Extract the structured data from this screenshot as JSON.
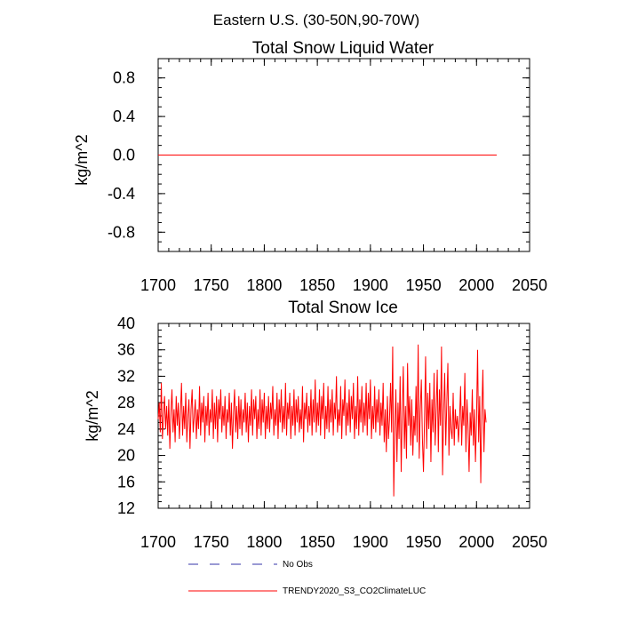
{
  "figure_title": "Eastern U.S. (30-50N,90-70W)",
  "colors": {
    "model": "#ff0000",
    "obs": "#3333aa"
  },
  "legend": [
    {
      "label": "No Obs",
      "style": "dashed",
      "color": "#3333aa"
    },
    {
      "label": "TRENDY2020_S3_CO2ClimateLUC",
      "style": "solid",
      "color": "#ff0000"
    }
  ],
  "chart_data": [
    {
      "type": "line",
      "title": "Total Snow Liquid Water",
      "xlabel": "",
      "ylabel": "kg/m^2",
      "xlim": [
        1700,
        2050
      ],
      "ylim": [
        -1.0,
        1.0
      ],
      "xticks": [
        1700,
        1750,
        1800,
        1850,
        1900,
        1950,
        2000,
        2050
      ],
      "xtick_labels": [
        "1700",
        "1750",
        "1800",
        "1850",
        "1900",
        "1950",
        "2000",
        "2050"
      ],
      "yticks": [
        -0.8,
        -0.4,
        0.0,
        0.4,
        0.8
      ],
      "ytick_labels": [
        "-0.8",
        "-0.4",
        "0.0",
        "0.4",
        "0.8"
      ],
      "series": [
        {
          "name": "TRENDY2020_S3_CO2ClimateLUC",
          "x_start": 1700,
          "values": [
            0.0,
            0.0
          ],
          "x": [
            1700,
            2019
          ]
        }
      ]
    },
    {
      "type": "line",
      "title": "Total Snow Ice",
      "xlabel": "",
      "ylabel": "kg/m^2",
      "xlim": [
        1700,
        2050
      ],
      "ylim": [
        12,
        40
      ],
      "xticks": [
        1700,
        1750,
        1800,
        1850,
        1900,
        1950,
        2000,
        2050
      ],
      "xtick_labels": [
        "1700",
        "1750",
        "1800",
        "1850",
        "1900",
        "1950",
        "2000",
        "2050"
      ],
      "yticks": [
        12,
        16,
        20,
        24,
        28,
        32,
        36,
        40
      ],
      "ytick_labels": [
        "12",
        "16",
        "20",
        "24",
        "28",
        "32",
        "36",
        "40"
      ],
      "series": [
        {
          "name": "TRENDY2020_S3_CO2ClimateLUC",
          "x_start": 1700,
          "values": [
            25.5,
            28.0,
            23.5,
            31.0,
            22.5,
            26.0,
            29.0,
            24.0,
            27.5,
            23.0,
            28.5,
            21.0,
            26.5,
            30.0,
            23.5,
            27.0,
            22.0,
            29.0,
            24.5,
            28.0,
            22.5,
            26.5,
            31.0,
            23.0,
            27.5,
            24.0,
            29.5,
            22.0,
            26.0,
            28.5,
            21.0,
            27.0,
            30.0,
            23.5,
            26.0,
            28.5,
            22.5,
            27.0,
            24.0,
            30.5,
            23.0,
            28.0,
            25.0,
            29.0,
            22.0,
            27.5,
            24.5,
            29.5,
            23.0,
            27.0,
            25.0,
            30.0,
            22.5,
            28.0,
            24.0,
            29.0,
            22.0,
            28.5,
            25.5,
            30.0,
            23.5,
            27.5,
            24.5,
            29.0,
            22.5,
            27.0,
            25.0,
            29.5,
            23.0,
            28.0,
            21.0,
            26.5,
            30.0,
            23.5,
            27.5,
            22.5,
            29.0,
            24.0,
            28.5,
            23.0,
            27.0,
            25.0,
            29.5,
            23.5,
            28.0,
            22.0,
            27.5,
            24.5,
            30.0,
            23.0,
            28.5,
            25.5,
            29.0,
            22.5,
            27.0,
            24.0,
            30.0,
            23.0,
            28.5,
            25.0,
            29.5,
            22.5,
            27.5,
            24.0,
            29.0,
            23.5,
            28.0,
            25.5,
            30.5,
            23.0,
            27.0,
            24.5,
            29.5,
            22.5,
            28.5,
            25.0,
            30.0,
            23.5,
            27.5,
            24.0,
            31.0,
            23.0,
            28.0,
            25.5,
            29.5,
            22.5,
            27.5,
            24.5,
            30.0,
            23.0,
            28.5,
            25.0,
            29.0,
            23.5,
            27.0,
            24.0,
            30.5,
            22.0,
            28.0,
            25.5,
            29.5,
            23.5,
            27.5,
            24.5,
            30.0,
            23.0,
            28.5,
            25.0,
            31.5,
            23.5,
            28.0,
            24.5,
            30.0,
            23.0,
            29.0,
            25.5,
            31.0,
            22.5,
            27.5,
            24.0,
            30.5,
            23.5,
            28.5,
            25.0,
            30.0,
            23.0,
            28.0,
            25.5,
            32.0,
            23.5,
            27.0,
            24.5,
            30.5,
            22.5,
            28.5,
            26.0,
            31.5,
            23.0,
            28.0,
            24.5,
            30.0,
            23.5,
            29.0,
            25.5,
            31.0,
            22.5,
            27.5,
            24.0,
            32.0,
            23.0,
            28.5,
            25.0,
            30.5,
            23.5,
            28.0,
            24.5,
            31.0,
            23.0,
            29.5,
            25.5,
            31.5,
            22.5,
            27.5,
            24.0,
            30.5,
            23.5,
            28.5,
            25.0,
            30.0,
            23.0,
            28.0,
            24.5,
            31.0,
            22.0,
            27.0,
            20.5,
            29.0,
            22.5,
            25.5,
            31.0,
            23.5,
            36.5,
            13.8,
            24.0,
            30.0,
            19.0,
            28.0,
            22.5,
            32.0,
            17.5,
            26.5,
            33.5,
            21.0,
            27.5,
            19.5,
            34.0,
            24.5,
            29.0,
            21.5,
            28.5,
            20.0,
            26.0,
            23.0,
            30.5,
            22.0,
            36.8,
            19.5,
            27.0,
            31.5,
            22.5,
            17.5,
            25.5,
            35.0,
            21.0,
            29.5,
            24.0,
            31.0,
            19.0,
            28.5,
            23.5,
            32.5,
            21.5,
            27.0,
            33.0,
            20.5,
            30.0,
            24.5,
            36.5,
            17.0,
            26.5,
            32.5,
            21.5,
            28.0,
            34.0,
            20.0,
            27.5,
            24.0,
            22.5,
            29.5,
            21.5,
            27.0,
            24.0,
            26.0,
            22.0,
            25.5,
            30.5,
            21.5,
            27.5,
            24.5,
            32.5,
            20.5,
            28.5,
            24.5,
            17.5,
            26.5,
            23.0,
            30.0,
            21.5,
            27.0,
            19.0,
            25.5,
            36.0,
            22.0,
            29.0,
            15.8,
            26.5,
            33.0,
            20.5,
            27.0,
            25.0
          ]
        }
      ]
    }
  ]
}
